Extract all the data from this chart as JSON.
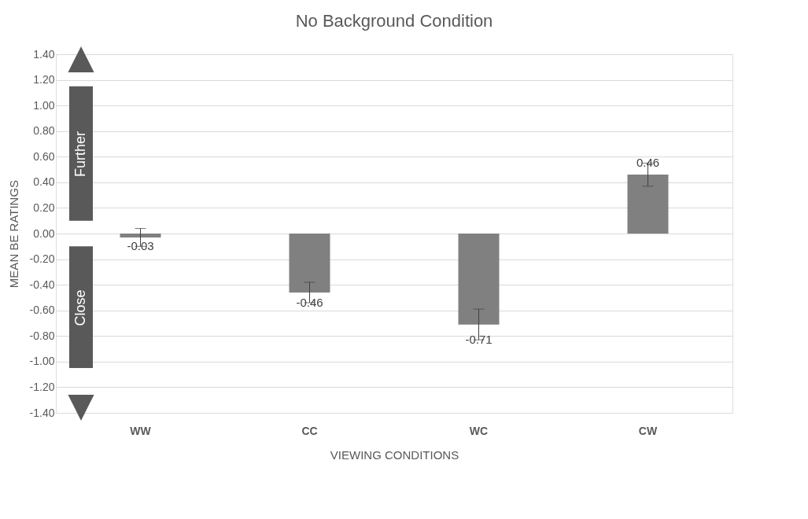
{
  "chart_data": {
    "type": "bar",
    "title": "No Background Condition",
    "xlabel": "VIEWING CONDITIONS",
    "ylabel": "MEAN BE RATINGS",
    "categories": [
      "WW",
      "CC",
      "WC",
      "CW"
    ],
    "values": [
      -0.03,
      -0.46,
      -0.71,
      0.46
    ],
    "errors": [
      0.07,
      0.08,
      0.12,
      0.09
    ],
    "color": "#808080",
    "data_labels": true,
    "ylim": [
      -1.4,
      1.4
    ],
    "yticks": [
      {
        "value": -1.4,
        "label": "-1.40"
      },
      {
        "value": -1.2,
        "label": "-1.20"
      },
      {
        "value": -1.0,
        "label": "-1.00"
      },
      {
        "value": -0.8,
        "label": "-0.80"
      },
      {
        "value": -0.6,
        "label": "-0.60"
      },
      {
        "value": -0.4,
        "label": "-0.40"
      },
      {
        "value": -0.2,
        "label": "-0.20"
      },
      {
        "value": 0,
        "label": "0.00"
      },
      {
        "value": 0.2,
        "label": "0.20"
      },
      {
        "value": 0.4,
        "label": "0.40"
      },
      {
        "value": 0.6,
        "label": "0.60"
      },
      {
        "value": 0.8,
        "label": "0.80"
      },
      {
        "value": 1.0,
        "label": "1.00"
      },
      {
        "value": 1.2,
        "label": "1.20"
      },
      {
        "value": 1.4,
        "label": "1.40"
      }
    ],
    "grid": "y",
    "annotations": [
      "Further",
      "Close"
    ]
  }
}
